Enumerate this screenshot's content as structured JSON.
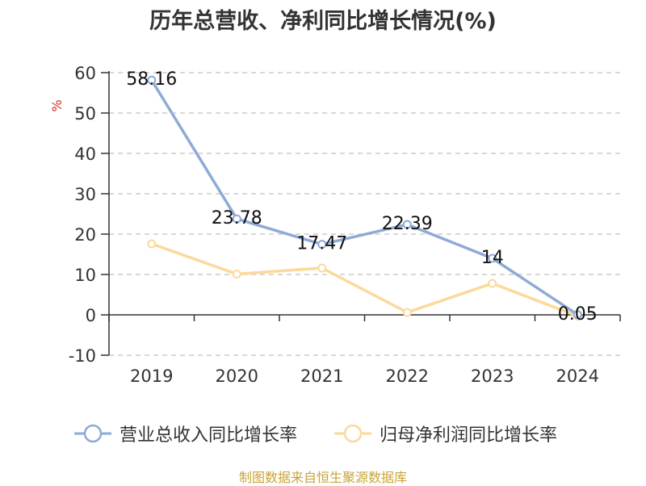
{
  "title": "历年总营收、净利同比增长情况(%)",
  "source": "制图数据来自恒生聚源数据库",
  "colors": {
    "revenue": "#8eabd6",
    "profit": "#fbd99a",
    "grid": "#cccccc",
    "axis": "#333333",
    "unit": "#d12b2b",
    "source": "#c9a338"
  },
  "chart_data": {
    "type": "line",
    "title": "历年总营收、净利同比增长情况(%)",
    "ylabel": "%",
    "categories": [
      "2019",
      "2020",
      "2021",
      "2022",
      "2023",
      "2024"
    ],
    "ylim": [
      -10,
      60
    ],
    "yticks": [
      60,
      50,
      40,
      30,
      20,
      10,
      0,
      -10
    ],
    "grid": true,
    "legend_position": "bottom",
    "series": [
      {
        "name": "营业总收入同比增长率",
        "values": [
          58.16,
          23.78,
          17.47,
          22.39,
          14,
          0.05
        ],
        "labels": [
          "58.16",
          "23.78",
          "17.47",
          "22.39",
          "14",
          "0.05"
        ]
      },
      {
        "name": "归母净利润同比增长率",
        "values": [
          17.6,
          10.1,
          11.6,
          0.6,
          7.8,
          -0.3
        ]
      }
    ]
  }
}
